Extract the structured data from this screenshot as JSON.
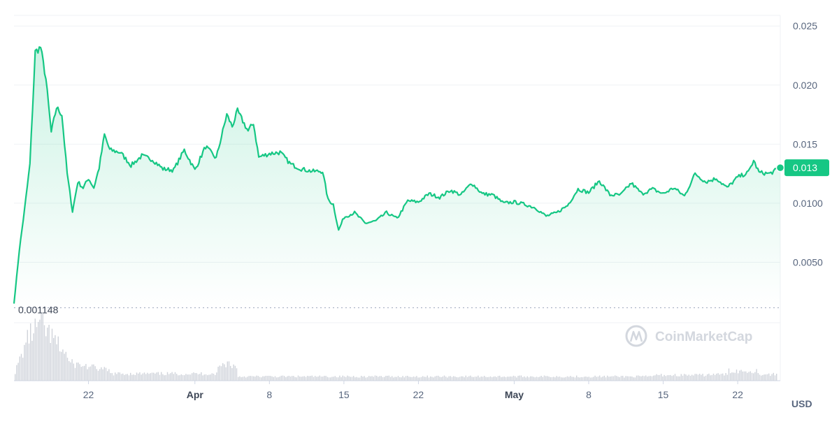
{
  "chart_data": {
    "type": "area",
    "title": "",
    "currency": "USD",
    "x_range": [
      "2024-03-15",
      "2024-05-26"
    ],
    "y_ticks": [
      "0.025",
      "0.020",
      "0.015",
      "0.0100",
      "0.0050"
    ],
    "y_tick_values": [
      0.025,
      0.02,
      0.015,
      0.01,
      0.005
    ],
    "ylim": [
      0,
      0.0259
    ],
    "x_ticks": [
      {
        "label": "22",
        "date": "2024-03-22",
        "major": false
      },
      {
        "label": "Apr",
        "date": "2024-04-01",
        "major": true
      },
      {
        "label": "8",
        "date": "2024-04-08",
        "major": false
      },
      {
        "label": "15",
        "date": "2024-04-15",
        "major": false
      },
      {
        "label": "22",
        "date": "2024-04-22",
        "major": false
      },
      {
        "label": "May",
        "date": "2024-05-01",
        "major": true
      },
      {
        "label": "8",
        "date": "2024-05-08",
        "major": false
      },
      {
        "label": "15",
        "date": "2024-05-15",
        "major": false
      },
      {
        "label": "22",
        "date": "2024-05-22",
        "major": false
      }
    ],
    "baseline": {
      "value": 0.001148,
      "label": "0.001148"
    },
    "current_price": {
      "value": 0.013,
      "label": "0.013"
    },
    "grid": true,
    "colors": {
      "line": "#16c784",
      "price_tag": "#16c784",
      "volume": "#cfd3da",
      "grid": "#eff2f5"
    },
    "watermark": "CoinMarketCap",
    "price_series": {
      "name": "",
      "points": [
        [
          "2024-03-15",
          0.0015
        ],
        [
          "2024-03-15T12:00",
          0.006
        ],
        [
          "2024-03-16",
          0.0095
        ],
        [
          "2024-03-16T12:00",
          0.0133
        ],
        [
          "2024-03-17",
          0.0228
        ],
        [
          "2024-03-17T12:00",
          0.0232
        ],
        [
          "2024-03-18",
          0.0205
        ],
        [
          "2024-03-18T12:00",
          0.016
        ],
        [
          "2024-03-19",
          0.0181
        ],
        [
          "2024-03-19T12:00",
          0.0175
        ],
        [
          "2024-03-20",
          0.0125
        ],
        [
          "2024-03-20T12:00",
          0.0093
        ],
        [
          "2024-03-21",
          0.0118
        ],
        [
          "2024-03-21T12:00",
          0.0113
        ],
        [
          "2024-03-22",
          0.0121
        ],
        [
          "2024-03-22T12:00",
          0.0113
        ],
        [
          "2024-03-23",
          0.013
        ],
        [
          "2024-03-23T12:00",
          0.0158
        ],
        [
          "2024-03-24",
          0.0145
        ],
        [
          "2024-03-25",
          0.0143
        ],
        [
          "2024-03-26",
          0.0132
        ],
        [
          "2024-03-27",
          0.014
        ],
        [
          "2024-03-28",
          0.0137
        ],
        [
          "2024-03-29",
          0.0129
        ],
        [
          "2024-03-30",
          0.0128
        ],
        [
          "2024-03-31",
          0.0145
        ],
        [
          "2024-04-01",
          0.0128
        ],
        [
          "2024-04-02",
          0.0148
        ],
        [
          "2024-04-03",
          0.0138
        ],
        [
          "2024-04-04",
          0.0175
        ],
        [
          "2024-04-04T12:00",
          0.0165
        ],
        [
          "2024-04-05",
          0.0178
        ],
        [
          "2024-04-06",
          0.0161
        ],
        [
          "2024-04-06T12:00",
          0.0168
        ],
        [
          "2024-04-07",
          0.0139
        ],
        [
          "2024-04-08",
          0.0142
        ],
        [
          "2024-04-09",
          0.0143
        ],
        [
          "2024-04-10",
          0.0133
        ],
        [
          "2024-04-11",
          0.0129
        ],
        [
          "2024-04-12",
          0.0127
        ],
        [
          "2024-04-13",
          0.0127
        ],
        [
          "2024-04-13T12:00",
          0.0103
        ],
        [
          "2024-04-14",
          0.0099
        ],
        [
          "2024-04-14T12:00",
          0.0077
        ],
        [
          "2024-04-15",
          0.0088
        ],
        [
          "2024-04-16",
          0.0092
        ],
        [
          "2024-04-17",
          0.0083
        ],
        [
          "2024-04-18",
          0.0085
        ],
        [
          "2024-04-19",
          0.0092
        ],
        [
          "2024-04-20",
          0.0087
        ],
        [
          "2024-04-21",
          0.0102
        ],
        [
          "2024-04-22",
          0.0101
        ],
        [
          "2024-04-23",
          0.0108
        ],
        [
          "2024-04-24",
          0.0105
        ],
        [
          "2024-04-25",
          0.0111
        ],
        [
          "2024-04-26",
          0.0107
        ],
        [
          "2024-04-27",
          0.0117
        ],
        [
          "2024-04-28",
          0.0108
        ],
        [
          "2024-04-29",
          0.0107
        ],
        [
          "2024-04-30",
          0.01
        ],
        [
          "2024-05-01",
          0.0101
        ],
        [
          "2024-05-02",
          0.0099
        ],
        [
          "2024-05-03",
          0.0096
        ],
        [
          "2024-05-04",
          0.0089
        ],
        [
          "2024-05-05",
          0.0092
        ],
        [
          "2024-05-06",
          0.0098
        ],
        [
          "2024-05-07",
          0.0112
        ],
        [
          "2024-05-08",
          0.0109
        ],
        [
          "2024-05-09",
          0.0119
        ],
        [
          "2024-05-10",
          0.0107
        ],
        [
          "2024-05-11",
          0.0107
        ],
        [
          "2024-05-12",
          0.0117
        ],
        [
          "2024-05-13",
          0.0108
        ],
        [
          "2024-05-14",
          0.0112
        ],
        [
          "2024-05-15",
          0.0108
        ],
        [
          "2024-05-16",
          0.0113
        ],
        [
          "2024-05-17",
          0.0106
        ],
        [
          "2024-05-18",
          0.0125
        ],
        [
          "2024-05-19",
          0.0118
        ],
        [
          "2024-05-20",
          0.0121
        ],
        [
          "2024-05-21",
          0.0113
        ],
        [
          "2024-05-22",
          0.0122
        ],
        [
          "2024-05-23",
          0.0126
        ],
        [
          "2024-05-23T12:00",
          0.0136
        ],
        [
          "2024-05-24",
          0.0126
        ],
        [
          "2024-05-25",
          0.0125
        ],
        [
          "2024-05-26",
          0.013
        ]
      ]
    }
  }
}
